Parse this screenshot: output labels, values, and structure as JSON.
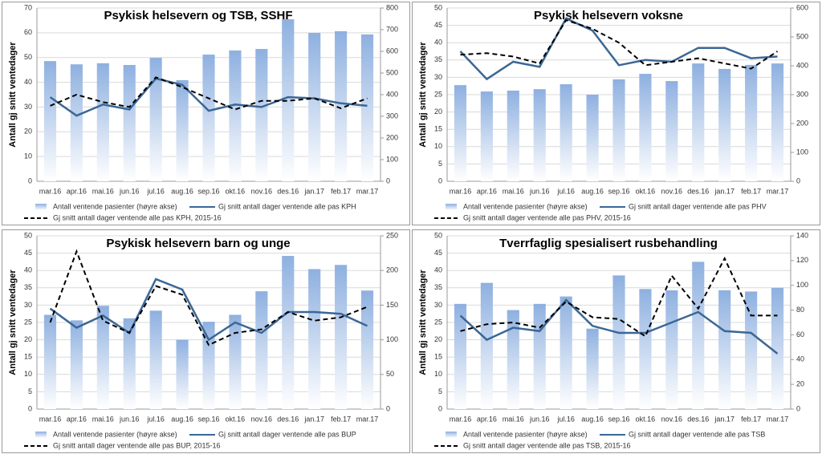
{
  "chart_data": [
    {
      "type": "combo",
      "title": "Psykisk helsevern og TSB, SSHF",
      "y_label": "Antall gj snitt ventedager",
      "categories": [
        "mar.16",
        "apr.16",
        "mai.16",
        "jun.16",
        "jul.16",
        "aug.16",
        "sep.16",
        "okt.16",
        "nov.16",
        "des.16",
        "jan.17",
        "feb.17",
        "mar.17"
      ],
      "ylim": [
        0,
        70
      ],
      "yticks": [
        0,
        10,
        20,
        30,
        40,
        50,
        60,
        70
      ],
      "y2lim": [
        0,
        800
      ],
      "y2ticks": [
        0,
        100,
        200,
        300,
        400,
        500,
        600,
        700,
        800
      ],
      "grid": true,
      "series": [
        {
          "name": "Antall ventende pasienter (høyre akse)",
          "kind": "bar",
          "axis": "y2",
          "color": "#8eb0e0",
          "values": [
            555,
            540,
            545,
            537,
            570,
            467,
            585,
            604,
            611,
            748,
            685,
            693,
            678
          ]
        },
        {
          "name": "Gj snitt antall dager ventende alle pas KPH",
          "kind": "line",
          "color": "#3b6795",
          "values": [
            34,
            26.5,
            31,
            29,
            41.5,
            39,
            28.5,
            31,
            30,
            34,
            33.5,
            31.5,
            30.5
          ]
        },
        {
          "name": "Gj snitt antall dager ventende alle pas KPH, 2015-16",
          "kind": "line",
          "dashed": true,
          "color": "#000000",
          "values": [
            30.5,
            35,
            32,
            30,
            42,
            38,
            33.5,
            29,
            32.5,
            32.5,
            33.5,
            29.5,
            33.5
          ]
        }
      ]
    },
    {
      "type": "combo",
      "title": "Psykisk helsevern voksne",
      "y_label": "Antall gj snitt ventedager",
      "categories": [
        "mar.16",
        "apr.16",
        "mai.16",
        "jun.16",
        "jul.16",
        "aug.16",
        "sep.16",
        "okt.16",
        "nov.16",
        "des.16",
        "jan.17",
        "feb.17",
        "mar.17"
      ],
      "ylim": [
        0,
        50
      ],
      "yticks": [
        0,
        5,
        10,
        15,
        20,
        25,
        30,
        35,
        40,
        45,
        50
      ],
      "y2lim": [
        0,
        600
      ],
      "y2ticks": [
        0,
        100,
        200,
        300,
        400,
        500,
        600
      ],
      "grid": true,
      "series": [
        {
          "name": "Antall ventende pasienter (høyre akse)",
          "kind": "bar",
          "axis": "y2",
          "color": "#8eb0e0",
          "values": [
            333,
            311,
            314,
            319,
            336,
            300,
            353,
            372,
            347,
            408,
            389,
            403,
            408
          ]
        },
        {
          "name": "Gj snitt antall dager ventende alle pas PHV",
          "kind": "line",
          "color": "#3b6795",
          "values": [
            37.5,
            29.5,
            34.5,
            33,
            47,
            43.5,
            33.5,
            35,
            34.5,
            38.5,
            38.5,
            35.5,
            36
          ]
        },
        {
          "name": "Gj snitt antall dager ventende alle pas PHV, 2015-16",
          "kind": "line",
          "dashed": true,
          "color": "#000000",
          "values": [
            36.5,
            37,
            36,
            34,
            46.5,
            44,
            40,
            33.5,
            34.5,
            35.5,
            34,
            32.5,
            37.5
          ]
        }
      ]
    },
    {
      "type": "combo",
      "title": "Psykisk helsevern barn og unge",
      "y_label": "Antall gj snitt ventedager",
      "categories": [
        "mar.16",
        "apr.16",
        "mai.16",
        "jun.16",
        "jul.16",
        "aug.16",
        "sep.16",
        "okt.16",
        "nov.16",
        "des.16",
        "jan.17",
        "feb.17",
        "mar.17"
      ],
      "ylim": [
        0,
        50
      ],
      "yticks": [
        0,
        5,
        10,
        15,
        20,
        25,
        30,
        35,
        40,
        45,
        50
      ],
      "y2lim": [
        0,
        250
      ],
      "y2ticks": [
        0,
        50,
        100,
        150,
        200,
        250
      ],
      "grid": true,
      "series": [
        {
          "name": "Antall ventende pasienter (høyre akse)",
          "kind": "bar",
          "axis": "y2",
          "color": "#8eb0e0",
          "values": [
            136,
            128,
            149,
            131,
            142,
            100,
            126,
            136,
            170,
            221,
            202,
            208,
            171
          ]
        },
        {
          "name": "Gj snitt antall dager ventende alle pas BUP",
          "kind": "line",
          "color": "#3b6795",
          "values": [
            29,
            23.5,
            27,
            22,
            37.5,
            34.5,
            20,
            25,
            22,
            28,
            28,
            27.5,
            24
          ]
        },
        {
          "name": "Gj snitt antall dager ventende alle pas BUP, 2015-16",
          "kind": "line",
          "dashed": true,
          "color": "#000000",
          "values": [
            25,
            45.5,
            25.5,
            22,
            35.5,
            33,
            18.5,
            22,
            23,
            28,
            25.5,
            26.5,
            29.5
          ]
        }
      ]
    },
    {
      "type": "combo",
      "title": "Tverrfaglig spesialisert rusbehandling",
      "y_label": "Antall gj snitt ventedager",
      "categories": [
        "mar.16",
        "apr.16",
        "mai.16",
        "jun.16",
        "jul.16",
        "aug.16",
        "sep.16",
        "okt.16",
        "nov.16",
        "des.16",
        "jan.17",
        "feb.17",
        "mar.17"
      ],
      "ylim": [
        0,
        50
      ],
      "yticks": [
        0,
        5,
        10,
        15,
        20,
        25,
        30,
        35,
        40,
        45,
        50
      ],
      "y2lim": [
        0,
        140
      ],
      "y2ticks": [
        0,
        20,
        40,
        60,
        80,
        100,
        120,
        140
      ],
      "grid": true,
      "series": [
        {
          "name": "Antall ventende pasienter (høyre akse)",
          "kind": "bar",
          "axis": "y2",
          "color": "#8eb0e0",
          "values": [
            85,
            102,
            80,
            85,
            91,
            65,
            108,
            97,
            96,
            119,
            96,
            95,
            98
          ]
        },
        {
          "name": "Gj snitt antall dager ventende alle pas TSB",
          "kind": "line",
          "color": "#3b6795",
          "values": [
            27,
            20,
            23.5,
            22.5,
            31.5,
            24,
            22,
            22,
            25,
            28,
            22.5,
            22,
            16
          ]
        },
        {
          "name": "Gj snitt antall dager ventende alle pas TSB, 2015-16",
          "kind": "line",
          "dashed": true,
          "color": "#000000",
          "values": [
            22.5,
            24.5,
            25,
            23.5,
            31,
            26.5,
            26,
            21,
            38.5,
            29,
            43.5,
            27,
            27
          ]
        }
      ]
    }
  ]
}
